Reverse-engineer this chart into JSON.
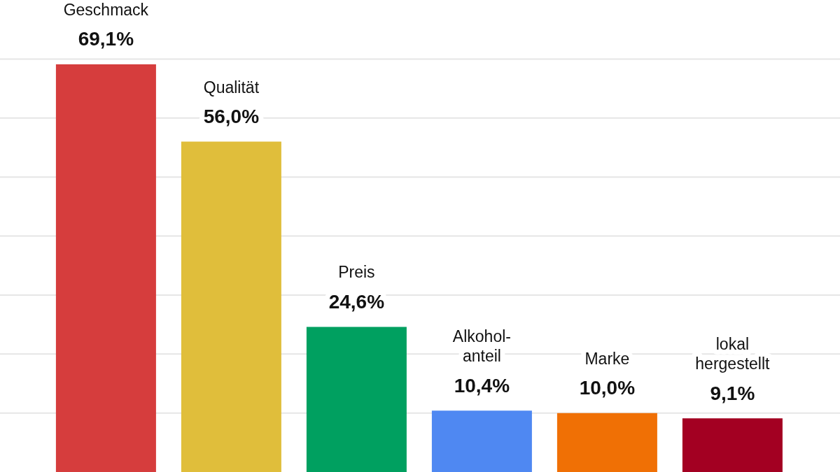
{
  "chart_data": {
    "type": "bar",
    "categories": [
      "Geschmack",
      "Qualität",
      "Preis",
      "Alkohol-\nanteil",
      "Marke",
      "lokal\nhergestellt"
    ],
    "values": [
      69.1,
      56.0,
      24.6,
      10.4,
      10.0,
      9.1
    ],
    "colors": [
      "#d63d3d",
      "#e0be3b",
      "#00a060",
      "#4f88f2",
      "#f07005",
      "#a30022"
    ],
    "value_labels": [
      "69,1%",
      "56,0%",
      "24,6%",
      "10,4%",
      "10,0%",
      "9,1%"
    ],
    "ylim": [
      0,
      80
    ],
    "grid": "y",
    "tick_labels": "x"
  }
}
